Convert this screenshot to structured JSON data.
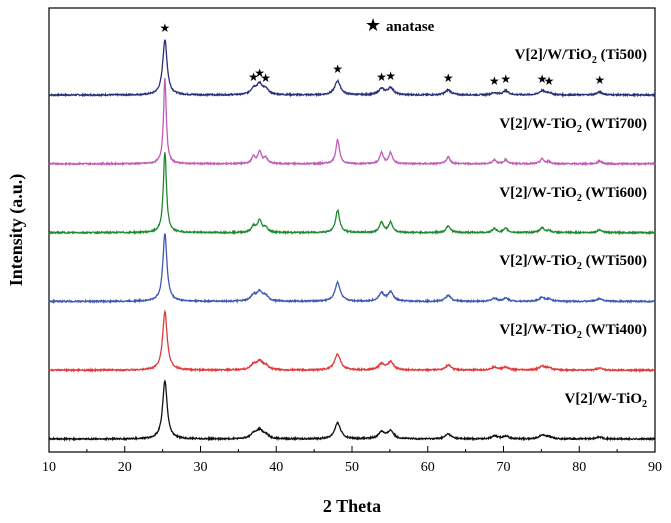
{
  "chart_data": {
    "type": "line",
    "xlabel": "2 Theta",
    "ylabel": "Intensity (a.u.)",
    "xlim": [
      10,
      90
    ],
    "xticks": [
      10,
      20,
      30,
      40,
      50,
      60,
      70,
      80,
      90
    ],
    "legend_note": {
      "symbol": "★",
      "text": "anatase"
    },
    "peaks_2theta": [
      25.3,
      37.0,
      37.8,
      38.6,
      48.1,
      53.9,
      55.1,
      62.7,
      68.8,
      70.3,
      75.1,
      76.0,
      82.7
    ],
    "star_peaks": [
      25.3,
      37.0,
      37.8,
      38.6,
      48.1,
      53.9,
      55.1,
      62.7,
      68.8,
      70.3,
      75.1,
      76.0,
      82.7
    ],
    "series": [
      {
        "label_main": "V[2]/W/TiO",
        "label_sub": "2",
        "label_tail": " (Ti500)",
        "color": "#2a2f7a",
        "offset": 5.0,
        "peak_heights": [
          55,
          6,
          10,
          5,
          14,
          6,
          7,
          5,
          2,
          4,
          4,
          2,
          3
        ],
        "peak_width": 0.35
      },
      {
        "label_main": "V[2]/W-TiO",
        "label_sub": "2",
        "label_tail": " (WTi700)",
        "color": "#c15cb5",
        "offset": 4.0,
        "peak_heights": [
          85,
          7,
          12,
          6,
          24,
          11,
          11,
          7,
          4,
          4,
          5,
          2,
          3
        ],
        "peak_width": 0.22
      },
      {
        "label_main": "V[2]/W-TiO",
        "label_sub": "2",
        "label_tail": " (WTi600)",
        "color": "#1e8a2e",
        "offset": 3.0,
        "peak_heights": [
          80,
          6,
          12,
          5,
          22,
          10,
          10,
          7,
          4,
          4,
          5,
          2,
          3
        ],
        "peak_width": 0.25
      },
      {
        "label_main": "V[2]/W-TiO",
        "label_sub": "2",
        "label_tail": " (WTi500)",
        "color": "#3f58b0",
        "offset": 2.0,
        "peak_heights": [
          68,
          6,
          9,
          5,
          19,
          8,
          9,
          6,
          3,
          3,
          4,
          2,
          3
        ],
        "peak_width": 0.32
      },
      {
        "label_main": "V[2]/W-TiO",
        "label_sub": "2",
        "label_tail": " (WTi400)",
        "color": "#e03a3a",
        "offset": 1.0,
        "peak_heights": [
          58,
          5,
          8,
          4,
          16,
          6,
          8,
          5,
          3,
          3,
          4,
          2,
          2
        ],
        "peak_width": 0.36
      },
      {
        "label_main": "V[2]/W-TiO",
        "label_sub": "2",
        "label_tail": "",
        "color": "#111111",
        "offset": 0.0,
        "peak_heights": [
          58,
          5,
          8,
          4,
          16,
          7,
          8,
          5,
          3,
          3,
          4,
          2,
          2
        ],
        "peak_width": 0.36
      }
    ]
  }
}
